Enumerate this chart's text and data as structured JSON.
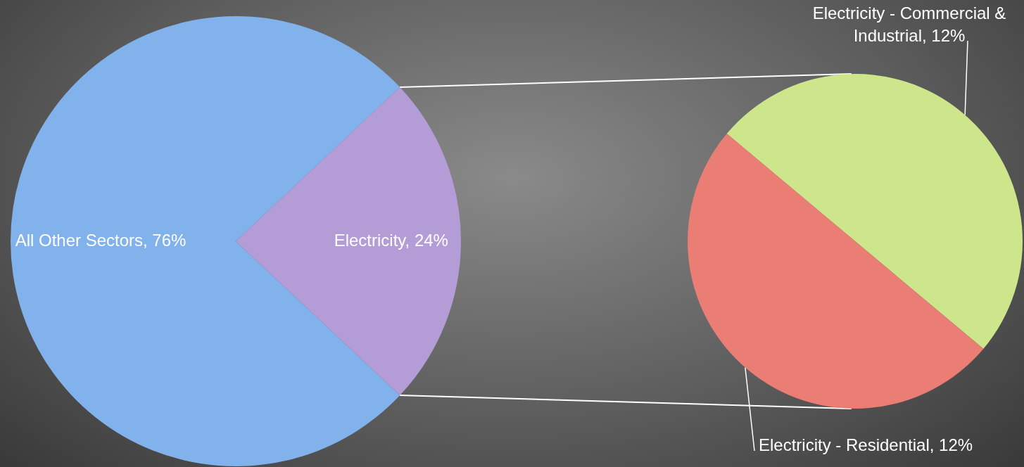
{
  "chart_data": [
    {
      "type": "pie",
      "categories": [
        "All Other Sectors",
        "Electricity"
      ],
      "values": [
        76,
        24
      ],
      "colors": [
        "#82b2ec",
        "#b49cd6"
      ],
      "value_labels": [
        "76%",
        "24%"
      ]
    },
    {
      "type": "pie",
      "categories": [
        "Electricity - Commercial & Industrial",
        "Electricity - Residential"
      ],
      "values": [
        12,
        12
      ],
      "colors": [
        "#cde68c",
        "#ea7d74"
      ],
      "value_labels": [
        "12%",
        "12%"
      ]
    }
  ]
}
